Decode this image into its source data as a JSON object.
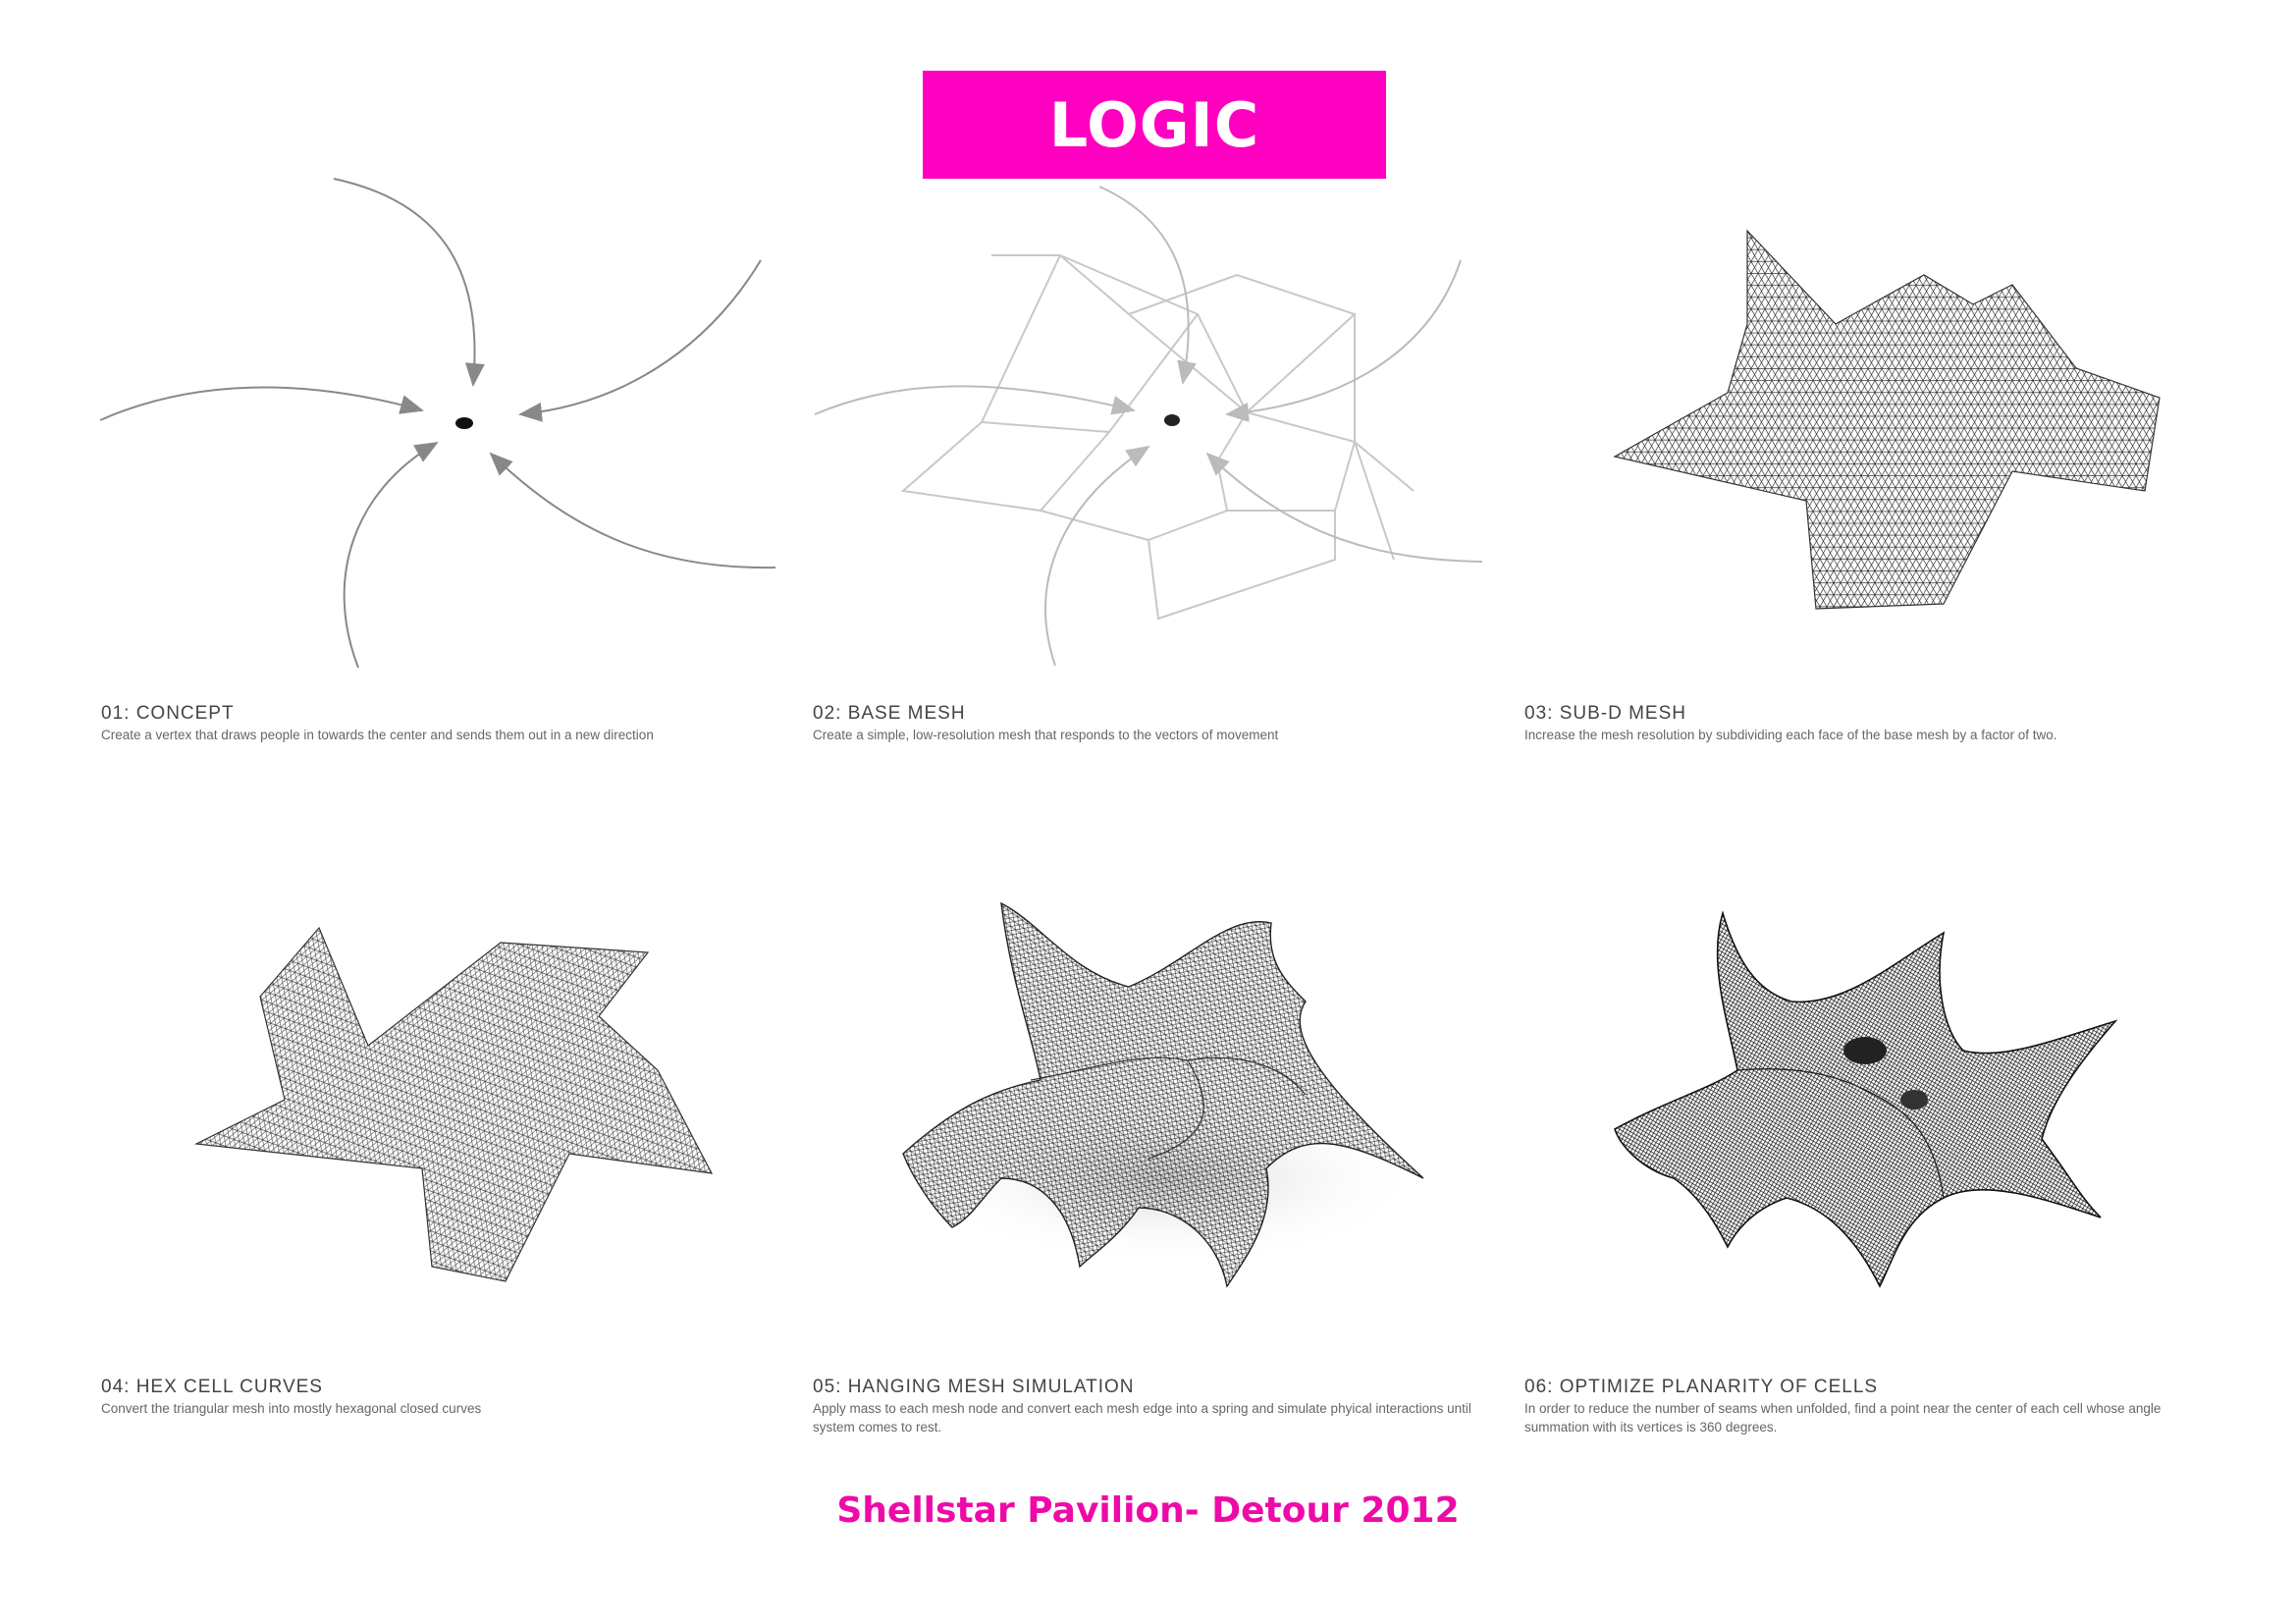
{
  "header": {
    "title": "LOGIC"
  },
  "steps": [
    {
      "heading": "01: CONCEPT",
      "description": "Create a vertex that draws people in towards the center and sends them out in a new direction",
      "figure": "radial-vectors-diagram"
    },
    {
      "heading": "02: BASE MESH",
      "description": "Create a simple, low-resolution mesh that responds to the vectors of movement",
      "figure": "base-mesh-diagram"
    },
    {
      "heading": "03: SUB-D MESH",
      "description": "Increase the mesh resolution by subdividing each face of the base mesh by a factor of two.",
      "figure": "subdivided-mesh-diagram"
    },
    {
      "heading": "04: HEX CELL CURVES",
      "description": "Convert the triangular mesh into mostly hexagonal closed curves",
      "figure": "hex-cell-curves-diagram"
    },
    {
      "heading": "05: HANGING MESH SIMULATION",
      "description": "Apply mass to each mesh node and convert each mesh edge into a spring and simulate phyical interactions until system comes to rest.",
      "figure": "hanging-mesh-diagram"
    },
    {
      "heading": "06: OPTIMIZE PLANARITY OF CELLS",
      "description": "In order to reduce the number of seams when unfolded, find a point near the center of each cell whose angle summation with its vertices is 360 degrees.",
      "figure": "optimized-shell-diagram"
    }
  ],
  "footer": {
    "text": "Shellstar Pavilion- Detour 2012"
  },
  "colors": {
    "accent": "#ff00c0",
    "footer_text": "#ee0aa8",
    "line": "#555555"
  }
}
